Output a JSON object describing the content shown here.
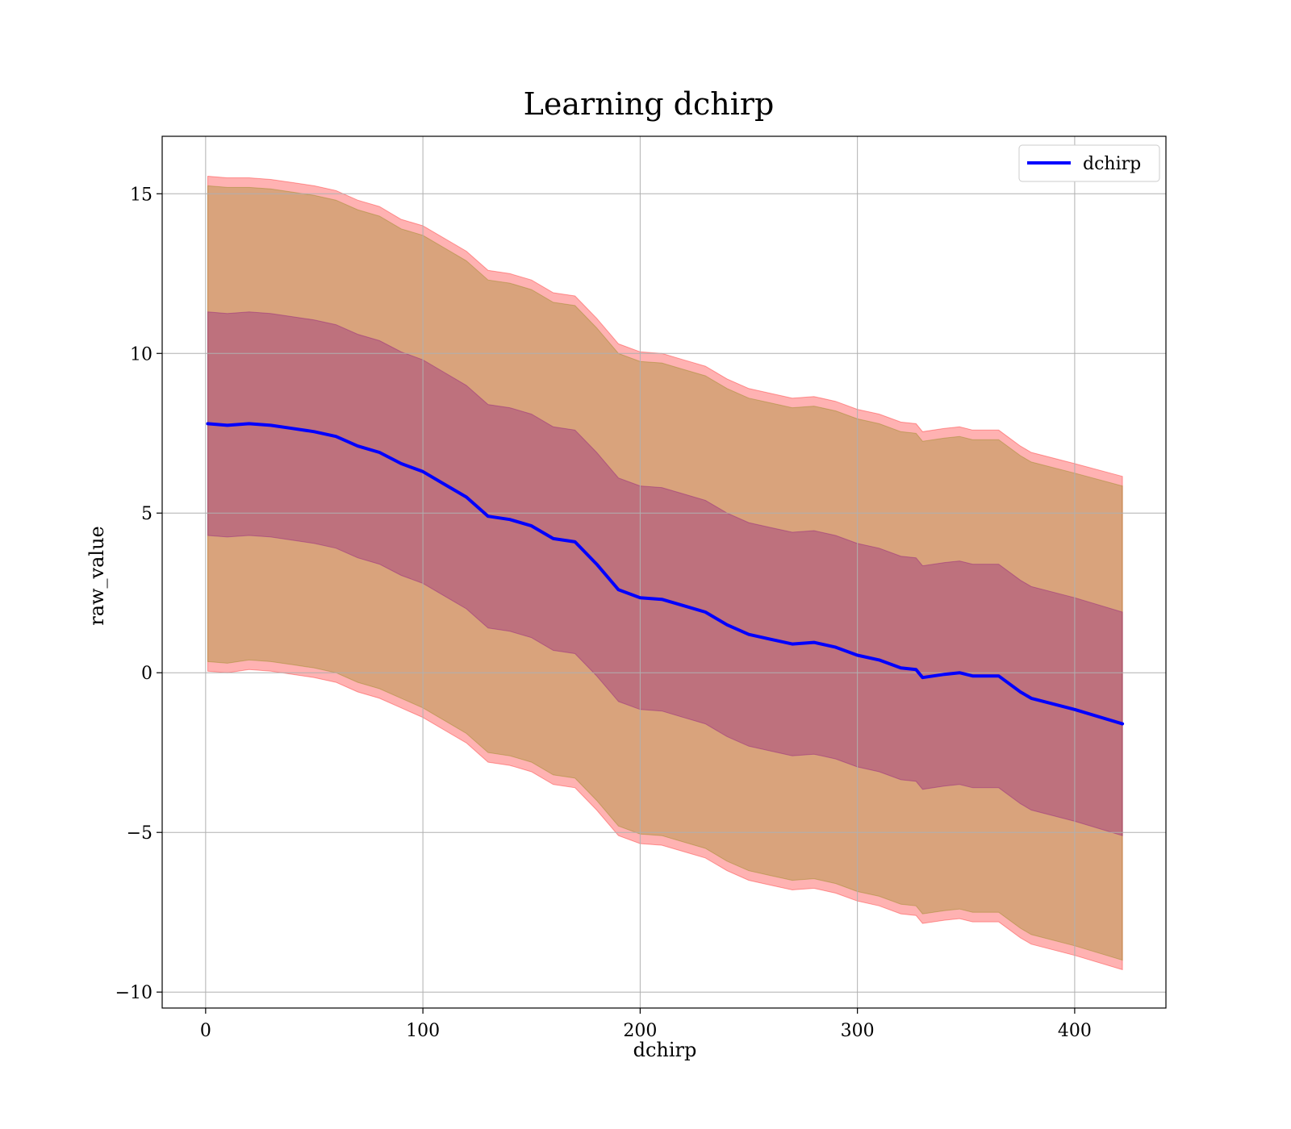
{
  "chart_data": {
    "type": "line",
    "title": "Learning dchirp",
    "xlabel": "dchirp",
    "ylabel": "raw_value",
    "xlim": [
      -20,
      442
    ],
    "ylim": [
      -10.5,
      16.8
    ],
    "xticks": [
      0,
      100,
      200,
      300,
      400
    ],
    "yticks": [
      -10,
      -5,
      0,
      5,
      10,
      15
    ],
    "xtick_labels": [
      "0",
      "100",
      "200",
      "300",
      "400"
    ],
    "ytick_labels": [
      "−10",
      "−5",
      "0",
      "5",
      "10",
      "15"
    ],
    "grid": true,
    "legend": {
      "position": "top-right",
      "entries": [
        "dchirp"
      ]
    },
    "series": [
      {
        "name": "dchirp",
        "color": "#0000ff",
        "x": [
          1,
          10,
          20,
          30,
          40,
          50,
          60,
          70,
          80,
          90,
          100,
          110,
          120,
          130,
          140,
          150,
          160,
          170,
          180,
          190,
          200,
          210,
          220,
          230,
          240,
          250,
          260,
          270,
          280,
          290,
          300,
          310,
          320,
          327,
          330,
          340,
          347,
          353,
          365,
          375,
          380,
          400,
          422
        ],
        "y": [
          7.8,
          7.75,
          7.8,
          7.75,
          7.65,
          7.55,
          7.4,
          7.1,
          6.9,
          6.55,
          6.3,
          5.9,
          5.5,
          4.9,
          4.8,
          4.6,
          4.2,
          4.1,
          3.4,
          2.6,
          2.35,
          2.3,
          2.1,
          1.9,
          1.5,
          1.2,
          1.05,
          0.9,
          0.95,
          0.8,
          0.55,
          0.4,
          0.15,
          0.1,
          -0.15,
          -0.05,
          0.0,
          -0.1,
          -0.1,
          -0.6,
          -0.8,
          -1.15,
          -1.6
        ]
      }
    ],
    "bands": [
      {
        "color": "#ff0000",
        "opacity": 0.3,
        "upper": [
          15.55,
          15.5,
          15.5,
          15.45,
          15.35,
          15.25,
          15.1,
          14.8,
          14.6,
          14.2,
          14.0,
          13.6,
          13.2,
          12.6,
          12.5,
          12.3,
          11.9,
          11.8,
          11.1,
          10.3,
          10.05,
          10.0,
          9.8,
          9.6,
          9.2,
          8.9,
          8.75,
          8.6,
          8.65,
          8.5,
          8.25,
          8.1,
          7.85,
          7.8,
          7.55,
          7.65,
          7.7,
          7.6,
          7.6,
          7.1,
          6.9,
          6.55,
          6.15
        ],
        "lower": [
          0.05,
          0.0,
          0.1,
          0.05,
          -0.05,
          -0.15,
          -0.3,
          -0.6,
          -0.8,
          -1.1,
          -1.4,
          -1.8,
          -2.2,
          -2.8,
          -2.9,
          -3.1,
          -3.5,
          -3.6,
          -4.3,
          -5.1,
          -5.35,
          -5.4,
          -5.6,
          -5.8,
          -6.2,
          -6.5,
          -6.65,
          -6.8,
          -6.75,
          -6.9,
          -7.15,
          -7.3,
          -7.55,
          -7.6,
          -7.85,
          -7.75,
          -7.7,
          -7.8,
          -7.8,
          -8.3,
          -8.5,
          -8.85,
          -9.3
        ]
      },
      {
        "color": "#808000",
        "opacity": 0.3,
        "upper": [
          15.25,
          15.2,
          15.2,
          15.15,
          15.05,
          14.95,
          14.8,
          14.5,
          14.3,
          13.9,
          13.7,
          13.3,
          12.9,
          12.3,
          12.2,
          12.0,
          11.6,
          11.5,
          10.8,
          10.0,
          9.75,
          9.7,
          9.5,
          9.3,
          8.9,
          8.6,
          8.45,
          8.3,
          8.35,
          8.2,
          7.95,
          7.8,
          7.55,
          7.5,
          7.25,
          7.35,
          7.4,
          7.3,
          7.3,
          6.8,
          6.6,
          6.25,
          5.85
        ],
        "lower": [
          0.35,
          0.3,
          0.4,
          0.35,
          0.25,
          0.15,
          0.0,
          -0.3,
          -0.5,
          -0.8,
          -1.1,
          -1.5,
          -1.9,
          -2.5,
          -2.6,
          -2.8,
          -3.2,
          -3.3,
          -4.0,
          -4.8,
          -5.05,
          -5.1,
          -5.3,
          -5.5,
          -5.9,
          -6.2,
          -6.35,
          -6.5,
          -6.45,
          -6.6,
          -6.85,
          -7.0,
          -7.25,
          -7.3,
          -7.55,
          -7.45,
          -7.4,
          -7.5,
          -7.5,
          -8.0,
          -8.2,
          -8.55,
          -9.0
        ]
      },
      {
        "color": "#800080",
        "opacity": 0.3,
        "upper": [
          11.3,
          11.25,
          11.3,
          11.25,
          11.15,
          11.05,
          10.9,
          10.6,
          10.4,
          10.05,
          9.8,
          9.4,
          9.0,
          8.4,
          8.3,
          8.1,
          7.7,
          7.6,
          6.9,
          6.1,
          5.85,
          5.8,
          5.6,
          5.4,
          5.0,
          4.7,
          4.55,
          4.4,
          4.45,
          4.3,
          4.05,
          3.9,
          3.65,
          3.6,
          3.35,
          3.45,
          3.5,
          3.4,
          3.4,
          2.9,
          2.7,
          2.35,
          1.9
        ],
        "lower": [
          4.3,
          4.25,
          4.3,
          4.25,
          4.15,
          4.05,
          3.9,
          3.6,
          3.4,
          3.05,
          2.8,
          2.4,
          2.0,
          1.4,
          1.3,
          1.1,
          0.7,
          0.6,
          -0.1,
          -0.9,
          -1.15,
          -1.2,
          -1.4,
          -1.6,
          -2.0,
          -2.3,
          -2.45,
          -2.6,
          -2.55,
          -2.7,
          -2.95,
          -3.1,
          -3.35,
          -3.4,
          -3.65,
          -3.55,
          -3.5,
          -3.6,
          -3.6,
          -4.1,
          -4.3,
          -4.65,
          -5.1
        ]
      }
    ]
  }
}
